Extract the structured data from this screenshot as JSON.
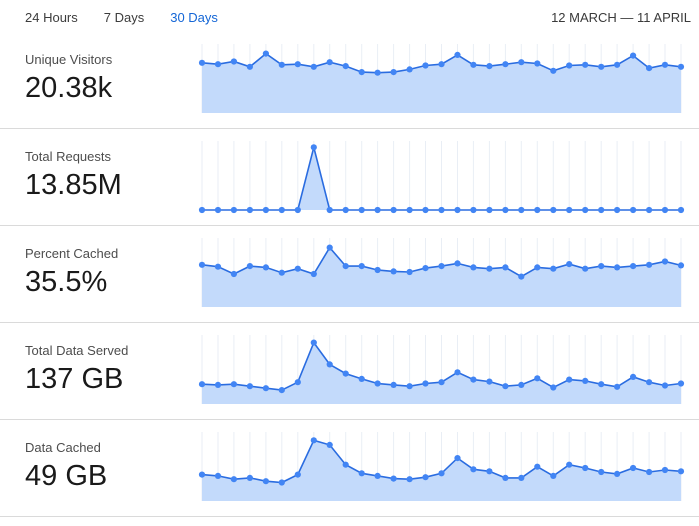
{
  "header": {
    "tabs": [
      {
        "label": "24 Hours",
        "active": false
      },
      {
        "label": "7 Days",
        "active": false
      },
      {
        "label": "30 Days",
        "active": true
      }
    ],
    "date_range": "12 MARCH — 11 APRIL"
  },
  "colors": {
    "active_tab": "#1466d6",
    "dot": "#4285f4",
    "line": "#2a6ce0",
    "fill": "#c3dafb",
    "gridline": "#e9eef5",
    "divider": "#dadada"
  },
  "chart_data": [
    {
      "type": "area",
      "metric": "Unique Visitors",
      "value": "20.38k",
      "x_range": "12 March – 11 April (31 daily points)",
      "axes": "none (sparkline, values normalized 0-1 of plot height)",
      "points": [
        0.76,
        0.74,
        0.78,
        0.7,
        0.9,
        0.73,
        0.74,
        0.7,
        0.77,
        0.71,
        0.62,
        0.61,
        0.62,
        0.66,
        0.72,
        0.74,
        0.88,
        0.73,
        0.71,
        0.74,
        0.77,
        0.75,
        0.64,
        0.72,
        0.73,
        0.7,
        0.73,
        0.87,
        0.68,
        0.73,
        0.7
      ]
    },
    {
      "type": "area",
      "metric": "Total Requests",
      "value": "13.85M",
      "x_range": "12 March – 11 April (31 daily points)",
      "axes": "none (sparkline, values normalized 0-1 of plot height)",
      "points": [
        0,
        0,
        0,
        0,
        0,
        0,
        0,
        0.95,
        0,
        0,
        0,
        0,
        0,
        0,
        0,
        0,
        0,
        0,
        0,
        0,
        0,
        0,
        0,
        0,
        0,
        0,
        0,
        0,
        0,
        0,
        0
      ]
    },
    {
      "type": "area",
      "metric": "Percent Cached",
      "value": "35.5%",
      "x_range": "12 March – 11 April (31 daily points)",
      "axes": "none (sparkline, values normalized 0-1 of plot height)",
      "points": [
        0.64,
        0.61,
        0.5,
        0.62,
        0.6,
        0.52,
        0.58,
        0.5,
        0.9,
        0.62,
        0.62,
        0.56,
        0.54,
        0.53,
        0.59,
        0.62,
        0.66,
        0.6,
        0.58,
        0.6,
        0.46,
        0.6,
        0.58,
        0.65,
        0.58,
        0.62,
        0.6,
        0.62,
        0.64,
        0.69,
        0.63
      ]
    },
    {
      "type": "area",
      "metric": "Total Data Served",
      "value": "137 GB",
      "x_range": "12 March – 11 April (31 daily points)",
      "axes": "none (sparkline, values normalized 0-1 of plot height)",
      "points": [
        0.3,
        0.29,
        0.3,
        0.27,
        0.24,
        0.21,
        0.33,
        0.93,
        0.6,
        0.46,
        0.38,
        0.31,
        0.29,
        0.27,
        0.31,
        0.33,
        0.48,
        0.37,
        0.34,
        0.27,
        0.29,
        0.39,
        0.25,
        0.37,
        0.35,
        0.3,
        0.26,
        0.41,
        0.33,
        0.28,
        0.31
      ]
    },
    {
      "type": "area",
      "metric": "Data Cached",
      "value": "49 GB",
      "x_range": "12 March – 11 April (31 daily points)",
      "axes": "none (sparkline, values normalized 0-1 of plot height)",
      "points": [
        0.4,
        0.38,
        0.33,
        0.35,
        0.3,
        0.28,
        0.4,
        0.92,
        0.85,
        0.55,
        0.42,
        0.38,
        0.34,
        0.33,
        0.36,
        0.42,
        0.65,
        0.48,
        0.45,
        0.35,
        0.35,
        0.52,
        0.38,
        0.55,
        0.5,
        0.44,
        0.41,
        0.5,
        0.44,
        0.47,
        0.45
      ]
    }
  ]
}
